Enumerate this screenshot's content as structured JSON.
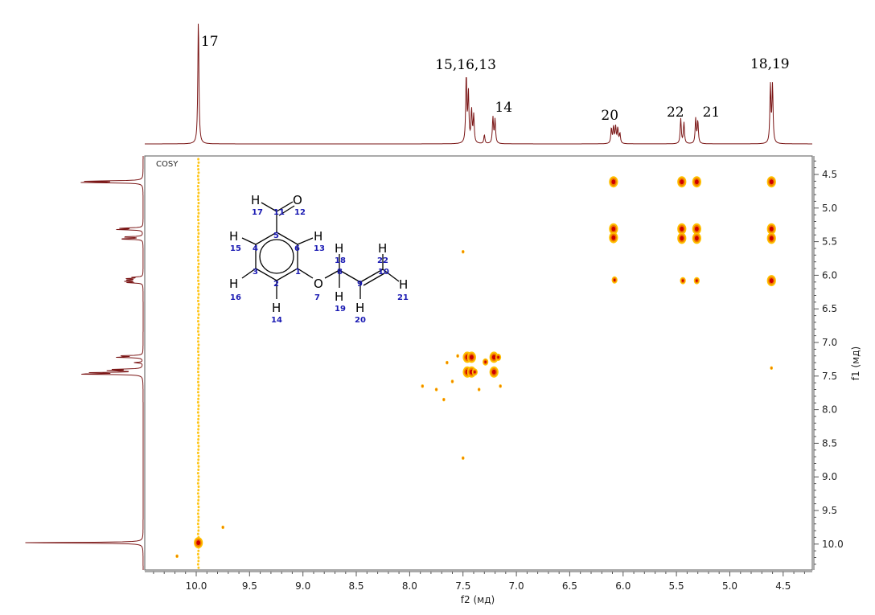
{
  "panel_label": "COSY",
  "colors": {
    "trace": "#7a1515",
    "peak_core": "#cc0000",
    "peak_mid": "#f07a00",
    "peak_edge": "#ffc000",
    "frame": "#555555",
    "atom_number": "#1a1ab3"
  },
  "chart_data": {
    "type": "heatmap",
    "title": "",
    "xlabel": "f2 (мд)",
    "ylabel": "f1 (мд)",
    "xlim": [
      10.4,
      4.2
    ],
    "ylim": [
      4.3,
      10.4
    ],
    "x_ticks": [
      "10.0",
      "9.5",
      "9.0",
      "8.5",
      "8.0",
      "7.5",
      "7.0",
      "6.5",
      "6.0",
      "5.5",
      "5.0",
      "4.5"
    ],
    "y_ticks": [
      "4.5",
      "5.0",
      "5.5",
      "6.0",
      "6.5",
      "7.0",
      "7.5",
      "8.0",
      "8.5",
      "9.0",
      "9.5",
      "10.0"
    ],
    "peak_labels": [
      {
        "text": "17",
        "ppm": 9.98
      },
      {
        "text": "15,16,13",
        "ppm": 7.46
      },
      {
        "text": "14",
        "ppm": 7.21
      },
      {
        "text": "20",
        "ppm": 6.08
      },
      {
        "text": "22",
        "ppm": 5.45
      },
      {
        "text": "21",
        "ppm": 5.31
      },
      {
        "text": "18,19",
        "ppm": 4.61
      }
    ],
    "spectrum_1d": [
      {
        "ppm": 9.98,
        "height": 1.0
      },
      {
        "ppm": 7.47,
        "height": 0.54
      },
      {
        "ppm": 7.45,
        "height": 0.4
      },
      {
        "ppm": 7.42,
        "height": 0.26
      },
      {
        "ppm": 7.4,
        "height": 0.22
      },
      {
        "ppm": 7.22,
        "height": 0.21
      },
      {
        "ppm": 7.2,
        "height": 0.19
      },
      {
        "ppm": 7.3,
        "height": 0.07
      },
      {
        "ppm": 6.11,
        "height": 0.12
      },
      {
        "ppm": 6.09,
        "height": 0.13
      },
      {
        "ppm": 6.07,
        "height": 0.13
      },
      {
        "ppm": 6.05,
        "height": 0.12
      },
      {
        "ppm": 6.03,
        "height": 0.08
      },
      {
        "ppm": 5.46,
        "height": 0.2
      },
      {
        "ppm": 5.43,
        "height": 0.17
      },
      {
        "ppm": 5.32,
        "height": 0.2
      },
      {
        "ppm": 5.3,
        "height": 0.18
      },
      {
        "ppm": 4.62,
        "height": 0.46
      },
      {
        "ppm": 4.6,
        "height": 0.46
      }
    ],
    "cross_peaks": [
      {
        "x": 9.98,
        "y": 9.98,
        "level": "strong"
      },
      {
        "x": 10.18,
        "y": 10.18,
        "level": "weak"
      },
      {
        "x": 9.75,
        "y": 9.75,
        "level": "weak"
      },
      {
        "x": 7.46,
        "y": 7.22,
        "level": "strong"
      },
      {
        "x": 7.42,
        "y": 7.22,
        "level": "strong"
      },
      {
        "x": 7.46,
        "y": 7.44,
        "level": "strong"
      },
      {
        "x": 7.42,
        "y": 7.44,
        "level": "strong"
      },
      {
        "x": 7.21,
        "y": 7.22,
        "level": "strong"
      },
      {
        "x": 7.21,
        "y": 7.44,
        "level": "strong"
      },
      {
        "x": 7.29,
        "y": 7.29,
        "level": "medium"
      },
      {
        "x": 7.39,
        "y": 7.44,
        "level": "medium"
      },
      {
        "x": 7.17,
        "y": 7.22,
        "level": "medium"
      },
      {
        "x": 7.65,
        "y": 7.3,
        "level": "weak"
      },
      {
        "x": 7.6,
        "y": 7.58,
        "level": "weak"
      },
      {
        "x": 7.75,
        "y": 7.7,
        "level": "weak"
      },
      {
        "x": 7.88,
        "y": 7.65,
        "level": "weak"
      },
      {
        "x": 7.55,
        "y": 7.2,
        "level": "weak"
      },
      {
        "x": 7.35,
        "y": 7.7,
        "level": "weak"
      },
      {
        "x": 7.15,
        "y": 7.65,
        "level": "weak"
      },
      {
        "x": 7.68,
        "y": 7.85,
        "level": "weak"
      },
      {
        "x": 7.5,
        "y": 5.65,
        "level": "weak"
      },
      {
        "x": 7.5,
        "y": 8.72,
        "level": "weak"
      },
      {
        "x": 6.09,
        "y": 4.61,
        "level": "strong"
      },
      {
        "x": 6.09,
        "y": 5.31,
        "level": "strong"
      },
      {
        "x": 6.09,
        "y": 5.44,
        "level": "strong"
      },
      {
        "x": 6.08,
        "y": 6.07,
        "level": "medium"
      },
      {
        "x": 5.45,
        "y": 4.61,
        "level": "strong"
      },
      {
        "x": 5.45,
        "y": 5.31,
        "level": "strong"
      },
      {
        "x": 5.45,
        "y": 5.45,
        "level": "strong"
      },
      {
        "x": 5.44,
        "y": 6.08,
        "level": "medium"
      },
      {
        "x": 5.31,
        "y": 4.61,
        "level": "strong"
      },
      {
        "x": 5.31,
        "y": 5.31,
        "level": "strong"
      },
      {
        "x": 5.31,
        "y": 5.45,
        "level": "strong"
      },
      {
        "x": 5.31,
        "y": 6.08,
        "level": "medium"
      },
      {
        "x": 4.61,
        "y": 4.61,
        "level": "strong"
      },
      {
        "x": 4.61,
        "y": 5.31,
        "level": "strong"
      },
      {
        "x": 4.61,
        "y": 5.45,
        "level": "strong"
      },
      {
        "x": 4.61,
        "y": 6.08,
        "level": "strong"
      },
      {
        "x": 4.61,
        "y": 7.38,
        "level": "weak"
      }
    ],
    "t1_noise_ppm": 9.98
  },
  "molecule": {
    "atoms": {
      "H17": "H",
      "O12": "O",
      "H15": "H",
      "H13": "H",
      "H16": "H",
      "O7": "O",
      "H14": "H",
      "H18": "H",
      "H19": "H",
      "H22": "H",
      "H20": "H",
      "H21": "H"
    },
    "numbers": [
      "17",
      "11",
      "12",
      "5",
      "15",
      "4",
      "6",
      "13",
      "3",
      "1",
      "16",
      "2",
      "7",
      "8",
      "18",
      "22",
      "9",
      "10",
      "19",
      "21",
      "14",
      "20"
    ]
  }
}
